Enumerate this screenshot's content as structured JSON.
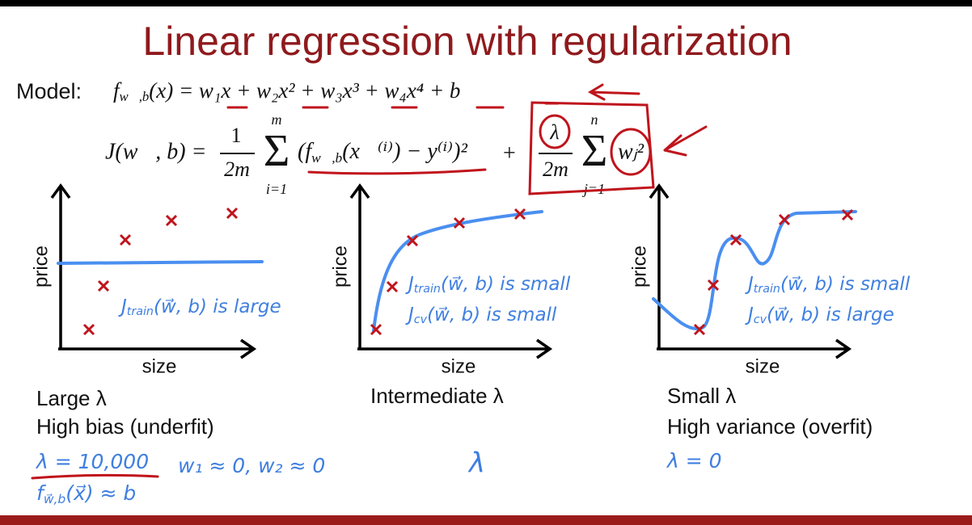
{
  "title": "Linear regression with regularization",
  "model": {
    "label": "Model:",
    "f": "f",
    "sub": "w⃗,b",
    "rest": "(x) = w₁x + w₂x² + w₃x³ + w₄x⁴ + b"
  },
  "cost": {
    "lhs": "J(w⃗, b) =",
    "num1": "1",
    "den1": "2m",
    "sum1_top": "m",
    "sum1_bottom": "i=1",
    "sigma": "Σ",
    "term_open": "(f",
    "term_sub": "w⃗,b",
    "term_rest": "(x⃗⁽ⁱ⁾) − y⁽ⁱ⁾)²",
    "plus": "+",
    "num2": "λ",
    "den2": "2m",
    "sum2_top": "n",
    "sum2_bottom": "j=1",
    "weight": "wⱼ²"
  },
  "panels": [
    {
      "y_label": "price",
      "x_label": "size",
      "notes": [
        {
          "j": "J",
          "sub": "train",
          "rest": "(w⃗, b) is large"
        }
      ],
      "caption": [
        "Large λ",
        "High bias (underfit)"
      ],
      "extra": [
        "λ = 10,000",
        "w₁ ≈ 0, w₂ ≈ 0",
        "f",
        "w⃗,b",
        "(x⃗) ≈ b"
      ]
    },
    {
      "y_label": "price",
      "x_label": "size",
      "notes": [
        {
          "j": "J",
          "sub": "train",
          "rest": "(w⃗, b) is small"
        },
        {
          "j": "J",
          "sub": "cv",
          "rest": "(w⃗, b) is small"
        }
      ],
      "caption": [
        "Intermediate λ"
      ],
      "extra": [
        "λ"
      ]
    },
    {
      "y_label": "price",
      "x_label": "size",
      "notes": [
        {
          "j": "J",
          "sub": "train",
          "rest": "(w⃗, b) is small"
        },
        {
          "j": "J",
          "sub": "cv",
          "rest": "(w⃗, b) is large"
        }
      ],
      "caption": [
        "Small λ",
        "High variance (overfit)"
      ],
      "extra": [
        "λ = 0"
      ]
    }
  ]
}
